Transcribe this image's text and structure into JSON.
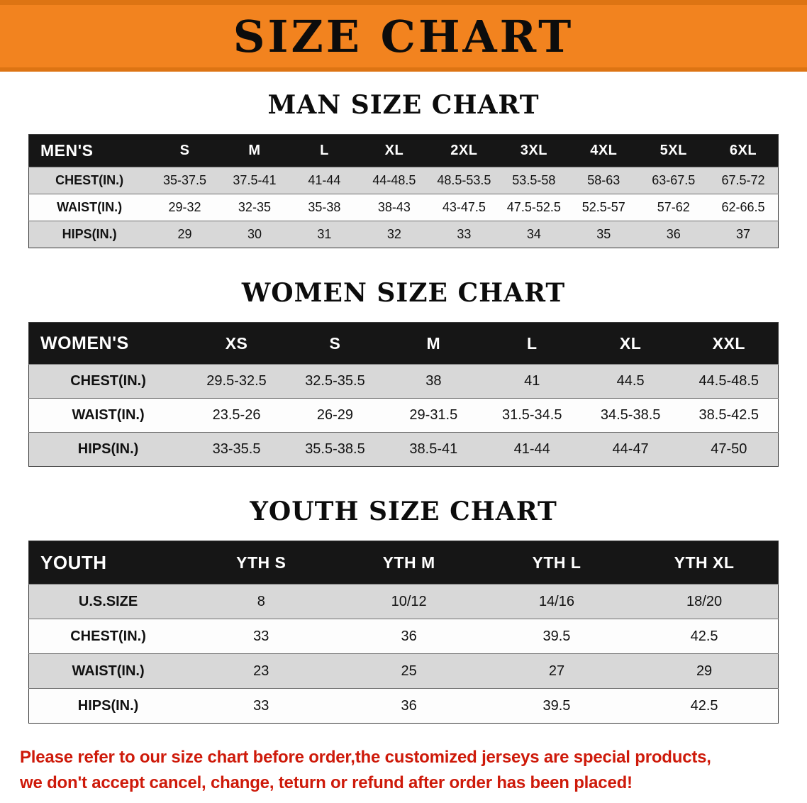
{
  "banner": {
    "title": "SIZE CHART"
  },
  "colors": {
    "banner_orange": "#f2831f",
    "header_black": "#161616",
    "row_gray": "#d8d8d8",
    "disclaimer_red": "#ce1a0a"
  },
  "sections": [
    {
      "key": "men",
      "heading": "MAN SIZE CHART",
      "table": {
        "header": [
          "MEN'S",
          "S",
          "M",
          "L",
          "XL",
          "2XL",
          "3XL",
          "4XL",
          "5XL",
          "6XL"
        ],
        "rows": [
          {
            "label": "CHEST(IN.)",
            "values": [
              "35-37.5",
              "37.5-41",
              "41-44",
              "44-48.5",
              "48.5-53.5",
              "53.5-58",
              "58-63",
              "63-67.5",
              "67.5-72"
            ]
          },
          {
            "label": "WAIST(IN.)",
            "values": [
              "29-32",
              "32-35",
              "35-38",
              "38-43",
              "43-47.5",
              "47.5-52.5",
              "52.5-57",
              "57-62",
              "62-66.5"
            ]
          },
          {
            "label": "HIPS(IN.)",
            "values": [
              "29",
              "30",
              "31",
              "32",
              "33",
              "34",
              "35",
              "36",
              "37"
            ]
          }
        ]
      }
    },
    {
      "key": "women",
      "heading": "WOMEN SIZE CHART",
      "table": {
        "header": [
          "WOMEN'S",
          "XS",
          "S",
          "M",
          "L",
          "XL",
          "XXL"
        ],
        "rows": [
          {
            "label": "CHEST(IN.)",
            "values": [
              "29.5-32.5",
              "32.5-35.5",
              "38",
              "41",
              "44.5",
              "44.5-48.5"
            ]
          },
          {
            "label": "WAIST(IN.)",
            "values": [
              "23.5-26",
              "26-29",
              "29-31.5",
              "31.5-34.5",
              "34.5-38.5",
              "38.5-42.5"
            ]
          },
          {
            "label": "HIPS(IN.)",
            "values": [
              "33-35.5",
              "35.5-38.5",
              "38.5-41",
              "41-44",
              "44-47",
              "47-50"
            ]
          }
        ]
      }
    },
    {
      "key": "youth",
      "heading": "YOUTH SIZE CHART",
      "table": {
        "header": [
          "YOUTH",
          "YTH S",
          "YTH M",
          "YTH L",
          "YTH XL"
        ],
        "rows": [
          {
            "label": "U.S.SIZE",
            "values": [
              "8",
              "10/12",
              "14/16",
              "18/20"
            ]
          },
          {
            "label": "CHEST(IN.)",
            "values": [
              "33",
              "36",
              "39.5",
              "42.5"
            ]
          },
          {
            "label": "WAIST(IN.)",
            "values": [
              "23",
              "25",
              "27",
              "29"
            ]
          },
          {
            "label": "HIPS(IN.)",
            "values": [
              "33",
              "36",
              "39.5",
              "42.5"
            ]
          }
        ]
      }
    }
  ],
  "disclaimer": {
    "lines": [
      "Please refer to our size chart before order,the customized jerseys are special products,",
      "we don't accept cancel, change, teturn or refund after order has been placed!"
    ]
  }
}
